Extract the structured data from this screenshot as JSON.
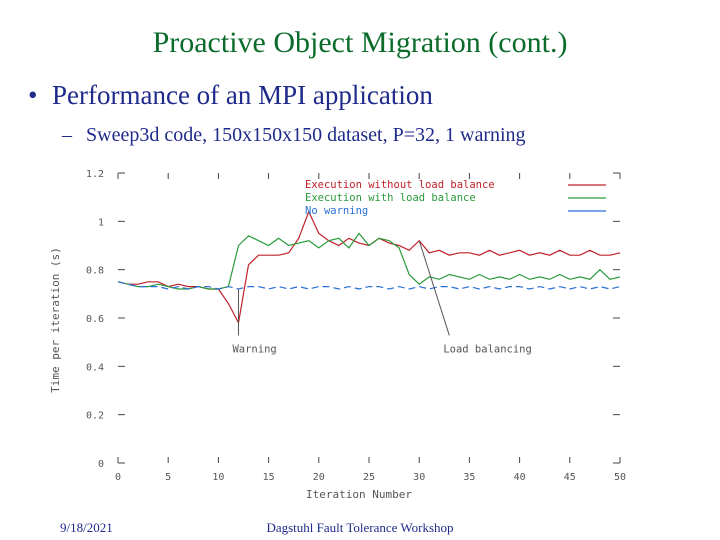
{
  "slide": {
    "title": "Proactive Object Migration (cont.)",
    "bullet": "Performance of an MPI application",
    "sub_bullet": "Sweep3d  code, 150x150x150 dataset,  P=32, 1 warning",
    "bullet_marker": "•",
    "sub_marker": "–"
  },
  "footer": {
    "date": "9/18/2021",
    "center": "Dagstuhl Fault Tolerance Workshop"
  },
  "chart_data": {
    "type": "line",
    "xlabel": "Iteration Number",
    "ylabel": "Time per iteration (s)",
    "xlim": [
      0,
      50
    ],
    "ylim": [
      0,
      1.2
    ],
    "xticks": [
      0,
      5,
      10,
      15,
      20,
      25,
      30,
      35,
      40,
      45,
      50
    ],
    "yticks": [
      0,
      0.2,
      0.4,
      0.6,
      0.8,
      1,
      1.2
    ],
    "ytick_labels": [
      "0",
      "0.2",
      "0.4",
      "0.6",
      "0.8",
      "1",
      "1.2"
    ],
    "legend_placement": "top-right",
    "grid": false,
    "series": [
      {
        "name": "Execution without load balance",
        "color": "#c0202a",
        "x": [
          0,
          1,
          2,
          3,
          4,
          5,
          6,
          7,
          8,
          9,
          10,
          11,
          12,
          13,
          14,
          15,
          16,
          17,
          18,
          19,
          20,
          21,
          22,
          23,
          24,
          25,
          26,
          27,
          28,
          29,
          30,
          31,
          32,
          33,
          34,
          35,
          36,
          37,
          38,
          39,
          40,
          41,
          42,
          43,
          44,
          45,
          46,
          47,
          48,
          49,
          50
        ],
        "y": [
          0.75,
          0.74,
          0.74,
          0.75,
          0.75,
          0.73,
          0.74,
          0.73,
          0.73,
          0.72,
          0.72,
          0.66,
          0.58,
          0.82,
          0.86,
          0.86,
          0.86,
          0.87,
          0.93,
          1.04,
          0.95,
          0.92,
          0.9,
          0.93,
          0.91,
          0.9,
          0.93,
          0.91,
          0.9,
          0.88,
          0.92,
          0.87,
          0.88,
          0.86,
          0.87,
          0.87,
          0.86,
          0.88,
          0.86,
          0.87,
          0.88,
          0.86,
          0.87,
          0.86,
          0.88,
          0.86,
          0.86,
          0.88,
          0.86,
          0.86,
          0.87
        ]
      },
      {
        "name": "Execution with load balance",
        "color": "#2a9a3a",
        "x": [
          0,
          1,
          2,
          3,
          4,
          5,
          6,
          7,
          8,
          9,
          10,
          11,
          12,
          13,
          14,
          15,
          16,
          17,
          18,
          19,
          20,
          21,
          22,
          23,
          24,
          25,
          26,
          27,
          28,
          29,
          30,
          31,
          32,
          33,
          34,
          35,
          36,
          37,
          38,
          39,
          40,
          41,
          42,
          43,
          44,
          45,
          46,
          47,
          48,
          49,
          50
        ],
        "y": [
          0.75,
          0.74,
          0.73,
          0.73,
          0.74,
          0.73,
          0.72,
          0.72,
          0.73,
          0.72,
          0.72,
          0.73,
          0.9,
          0.94,
          0.92,
          0.9,
          0.93,
          0.9,
          0.91,
          0.92,
          0.89,
          0.92,
          0.93,
          0.89,
          0.95,
          0.9,
          0.93,
          0.92,
          0.89,
          0.78,
          0.74,
          0.77,
          0.76,
          0.78,
          0.77,
          0.76,
          0.78,
          0.76,
          0.77,
          0.76,
          0.78,
          0.76,
          0.77,
          0.76,
          0.78,
          0.76,
          0.77,
          0.76,
          0.8,
          0.76,
          0.77
        ]
      },
      {
        "name": "No warning",
        "color": "#2a6fd6",
        "x": [
          0,
          1,
          2,
          3,
          4,
          5,
          6,
          7,
          8,
          9,
          10,
          11,
          12,
          13,
          14,
          15,
          16,
          17,
          18,
          19,
          20,
          21,
          22,
          23,
          24,
          25,
          26,
          27,
          28,
          29,
          30,
          31,
          32,
          33,
          34,
          35,
          36,
          37,
          38,
          39,
          40,
          41,
          42,
          43,
          44,
          45,
          46,
          47,
          48,
          49,
          50
        ],
        "y": [
          0.75,
          0.74,
          0.73,
          0.73,
          0.73,
          0.72,
          0.73,
          0.72,
          0.73,
          0.73,
          0.72,
          0.73,
          0.72,
          0.73,
          0.73,
          0.72,
          0.73,
          0.72,
          0.73,
          0.72,
          0.73,
          0.73,
          0.72,
          0.73,
          0.72,
          0.73,
          0.73,
          0.72,
          0.73,
          0.72,
          0.73,
          0.72,
          0.73,
          0.73,
          0.72,
          0.73,
          0.72,
          0.73,
          0.72,
          0.73,
          0.73,
          0.72,
          0.73,
          0.72,
          0.73,
          0.72,
          0.73,
          0.72,
          0.73,
          0.72,
          0.73
        ]
      }
    ],
    "annotations": [
      {
        "text": "Warning",
        "point_x": 12,
        "point_y": 0.72,
        "label_x": 12,
        "label_y": 0.47
      },
      {
        "text": "Load balancing",
        "point_x": 30,
        "point_y": 0.92,
        "label_x": 33,
        "label_y": 0.47
      }
    ]
  }
}
